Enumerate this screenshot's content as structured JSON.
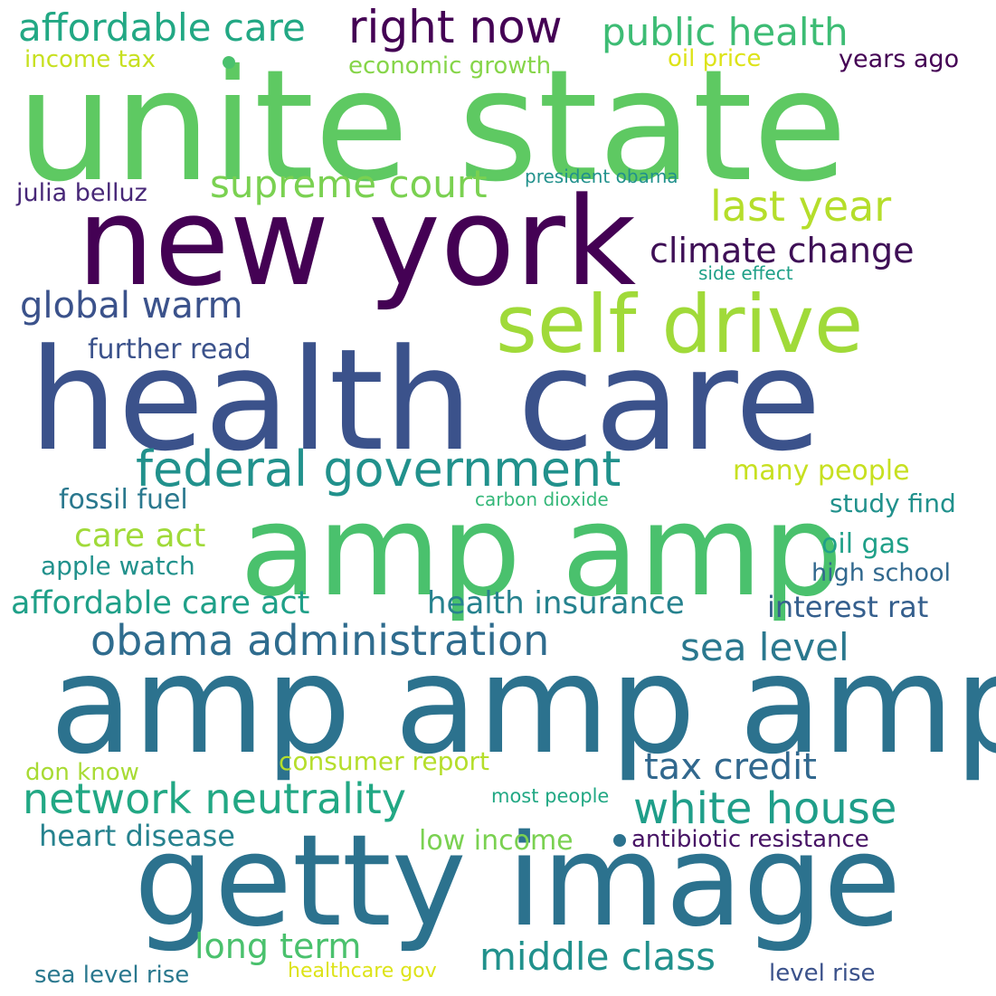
{
  "words": [
    {
      "text": "unite state",
      "color": "#5ec962"
    },
    {
      "text": "new york",
      "color": "#440154"
    },
    {
      "text": "health care",
      "color": "#3b528b"
    },
    {
      "text": "amp amp",
      "color": "#4ac16d"
    },
    {
      "text": "amp amp amp",
      "color": "#2c728e"
    },
    {
      "text": "getty image",
      "color": "#2c728e"
    },
    {
      "text": "self drive",
      "color": "#a0da39"
    },
    {
      "text": "federal government",
      "color": "#21918c"
    },
    {
      "text": "obama administration",
      "color": "#2f6c8e"
    },
    {
      "text": "network neutrality",
      "color": "#22a884"
    },
    {
      "text": "white house",
      "color": "#1f9e89"
    },
    {
      "text": "affordable care",
      "color": "#22a884"
    },
    {
      "text": "right now",
      "color": "#440154"
    },
    {
      "text": "public health",
      "color": "#3dbc74"
    },
    {
      "text": "supreme court",
      "color": "#7ad151"
    },
    {
      "text": "last year",
      "color": "#b5de2b"
    },
    {
      "text": "climate change",
      "color": "#3e0f56"
    },
    {
      "text": "global warm",
      "color": "#3b528b"
    },
    {
      "text": "further read",
      "color": "#3b528b"
    },
    {
      "text": "long term",
      "color": "#4ac16d"
    },
    {
      "text": "middle class",
      "color": "#21918c"
    },
    {
      "text": "tax credit",
      "color": "#31688e"
    },
    {
      "text": "sea level",
      "color": "#2a788e"
    },
    {
      "text": "health insurance",
      "color": "#26828e"
    },
    {
      "text": "affordable care act",
      "color": "#1fa088"
    },
    {
      "text": "care act",
      "color": "#a0da39"
    },
    {
      "text": "many people",
      "color": "#c7e020"
    },
    {
      "text": "fossil fuel",
      "color": "#2a788e"
    },
    {
      "text": "study find",
      "color": "#21918c"
    },
    {
      "text": "oil gas",
      "color": "#1fa088"
    },
    {
      "text": "high school",
      "color": "#31688e"
    },
    {
      "text": "interest rat",
      "color": "#355f8d"
    },
    {
      "text": "apple watch",
      "color": "#21918c"
    },
    {
      "text": "heart disease",
      "color": "#26828e"
    },
    {
      "text": "low income",
      "color": "#7ad151"
    },
    {
      "text": "antibiotic resistance",
      "color": "#471365"
    },
    {
      "text": "consumer report",
      "color": "#b5de2b"
    },
    {
      "text": "don know",
      "color": "#a8db34"
    },
    {
      "text": "most people",
      "color": "#22a884"
    },
    {
      "text": "sea level rise",
      "color": "#2a788e"
    },
    {
      "text": "healthcare gov",
      "color": "#dde318"
    },
    {
      "text": "level rise",
      "color": "#3b528b"
    },
    {
      "text": "income tax",
      "color": "#c7e020"
    },
    {
      "text": "economic growth",
      "color": "#86d549"
    },
    {
      "text": "oil price",
      "color": "#dde318"
    },
    {
      "text": "years ago",
      "color": "#440154"
    },
    {
      "text": "julia belluz",
      "color": "#482878"
    },
    {
      "text": "president obama",
      "color": "#21918c"
    },
    {
      "text": "side effect",
      "color": "#1fa088"
    },
    {
      "text": "carbon dioxide",
      "color": "#35b779"
    }
  ],
  "dots": [
    {
      "color": "#4ac16d"
    },
    {
      "color": "#2c728e"
    }
  ]
}
